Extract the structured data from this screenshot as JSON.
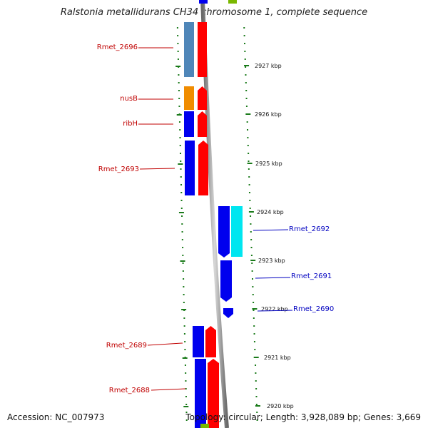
{
  "title": "Ralstonia metallidurans CH34 chromosome 1, complete sequence",
  "footer": {
    "accession": "Accession: NC_007973",
    "topology": "Topology: circular; Length: 3,928,089 bp; Genes: 3,669"
  },
  "scale_labels": [
    "2927 kbp",
    "2926 kbp",
    "2925 kbp",
    "2924 kbp",
    "2923 kbp",
    "2922 kbp",
    "2921 kbp",
    "2920 kbp"
  ],
  "genes_left": [
    {
      "label": "Rmet_2696",
      "color": "#c00000"
    },
    {
      "label": "nusB",
      "color": "#c00000"
    },
    {
      "label": "ribH",
      "color": "#c00000"
    },
    {
      "label": "Rmet_2693",
      "color": "#c00000"
    },
    {
      "label": "Rmet_2689",
      "color": "#c00000"
    },
    {
      "label": "Rmet_2688",
      "color": "#c00000"
    }
  ],
  "genes_right": [
    {
      "label": "Rmet_2692",
      "color": "#0000c0"
    },
    {
      "label": "Rmet_2691",
      "color": "#0000c0"
    },
    {
      "label": "Rmet_2690",
      "color": "#0000c0"
    }
  ],
  "colors": {
    "tick": "#1a7a1a",
    "axis": "#888888",
    "cog_steelblue": "#4f86b8",
    "cog_orange": "#f08c00",
    "cog_blue": "#0000ee",
    "cog_cyan": "#00e6f0",
    "cog_red": "#ff0000",
    "cog_green": "#7ab800"
  }
}
